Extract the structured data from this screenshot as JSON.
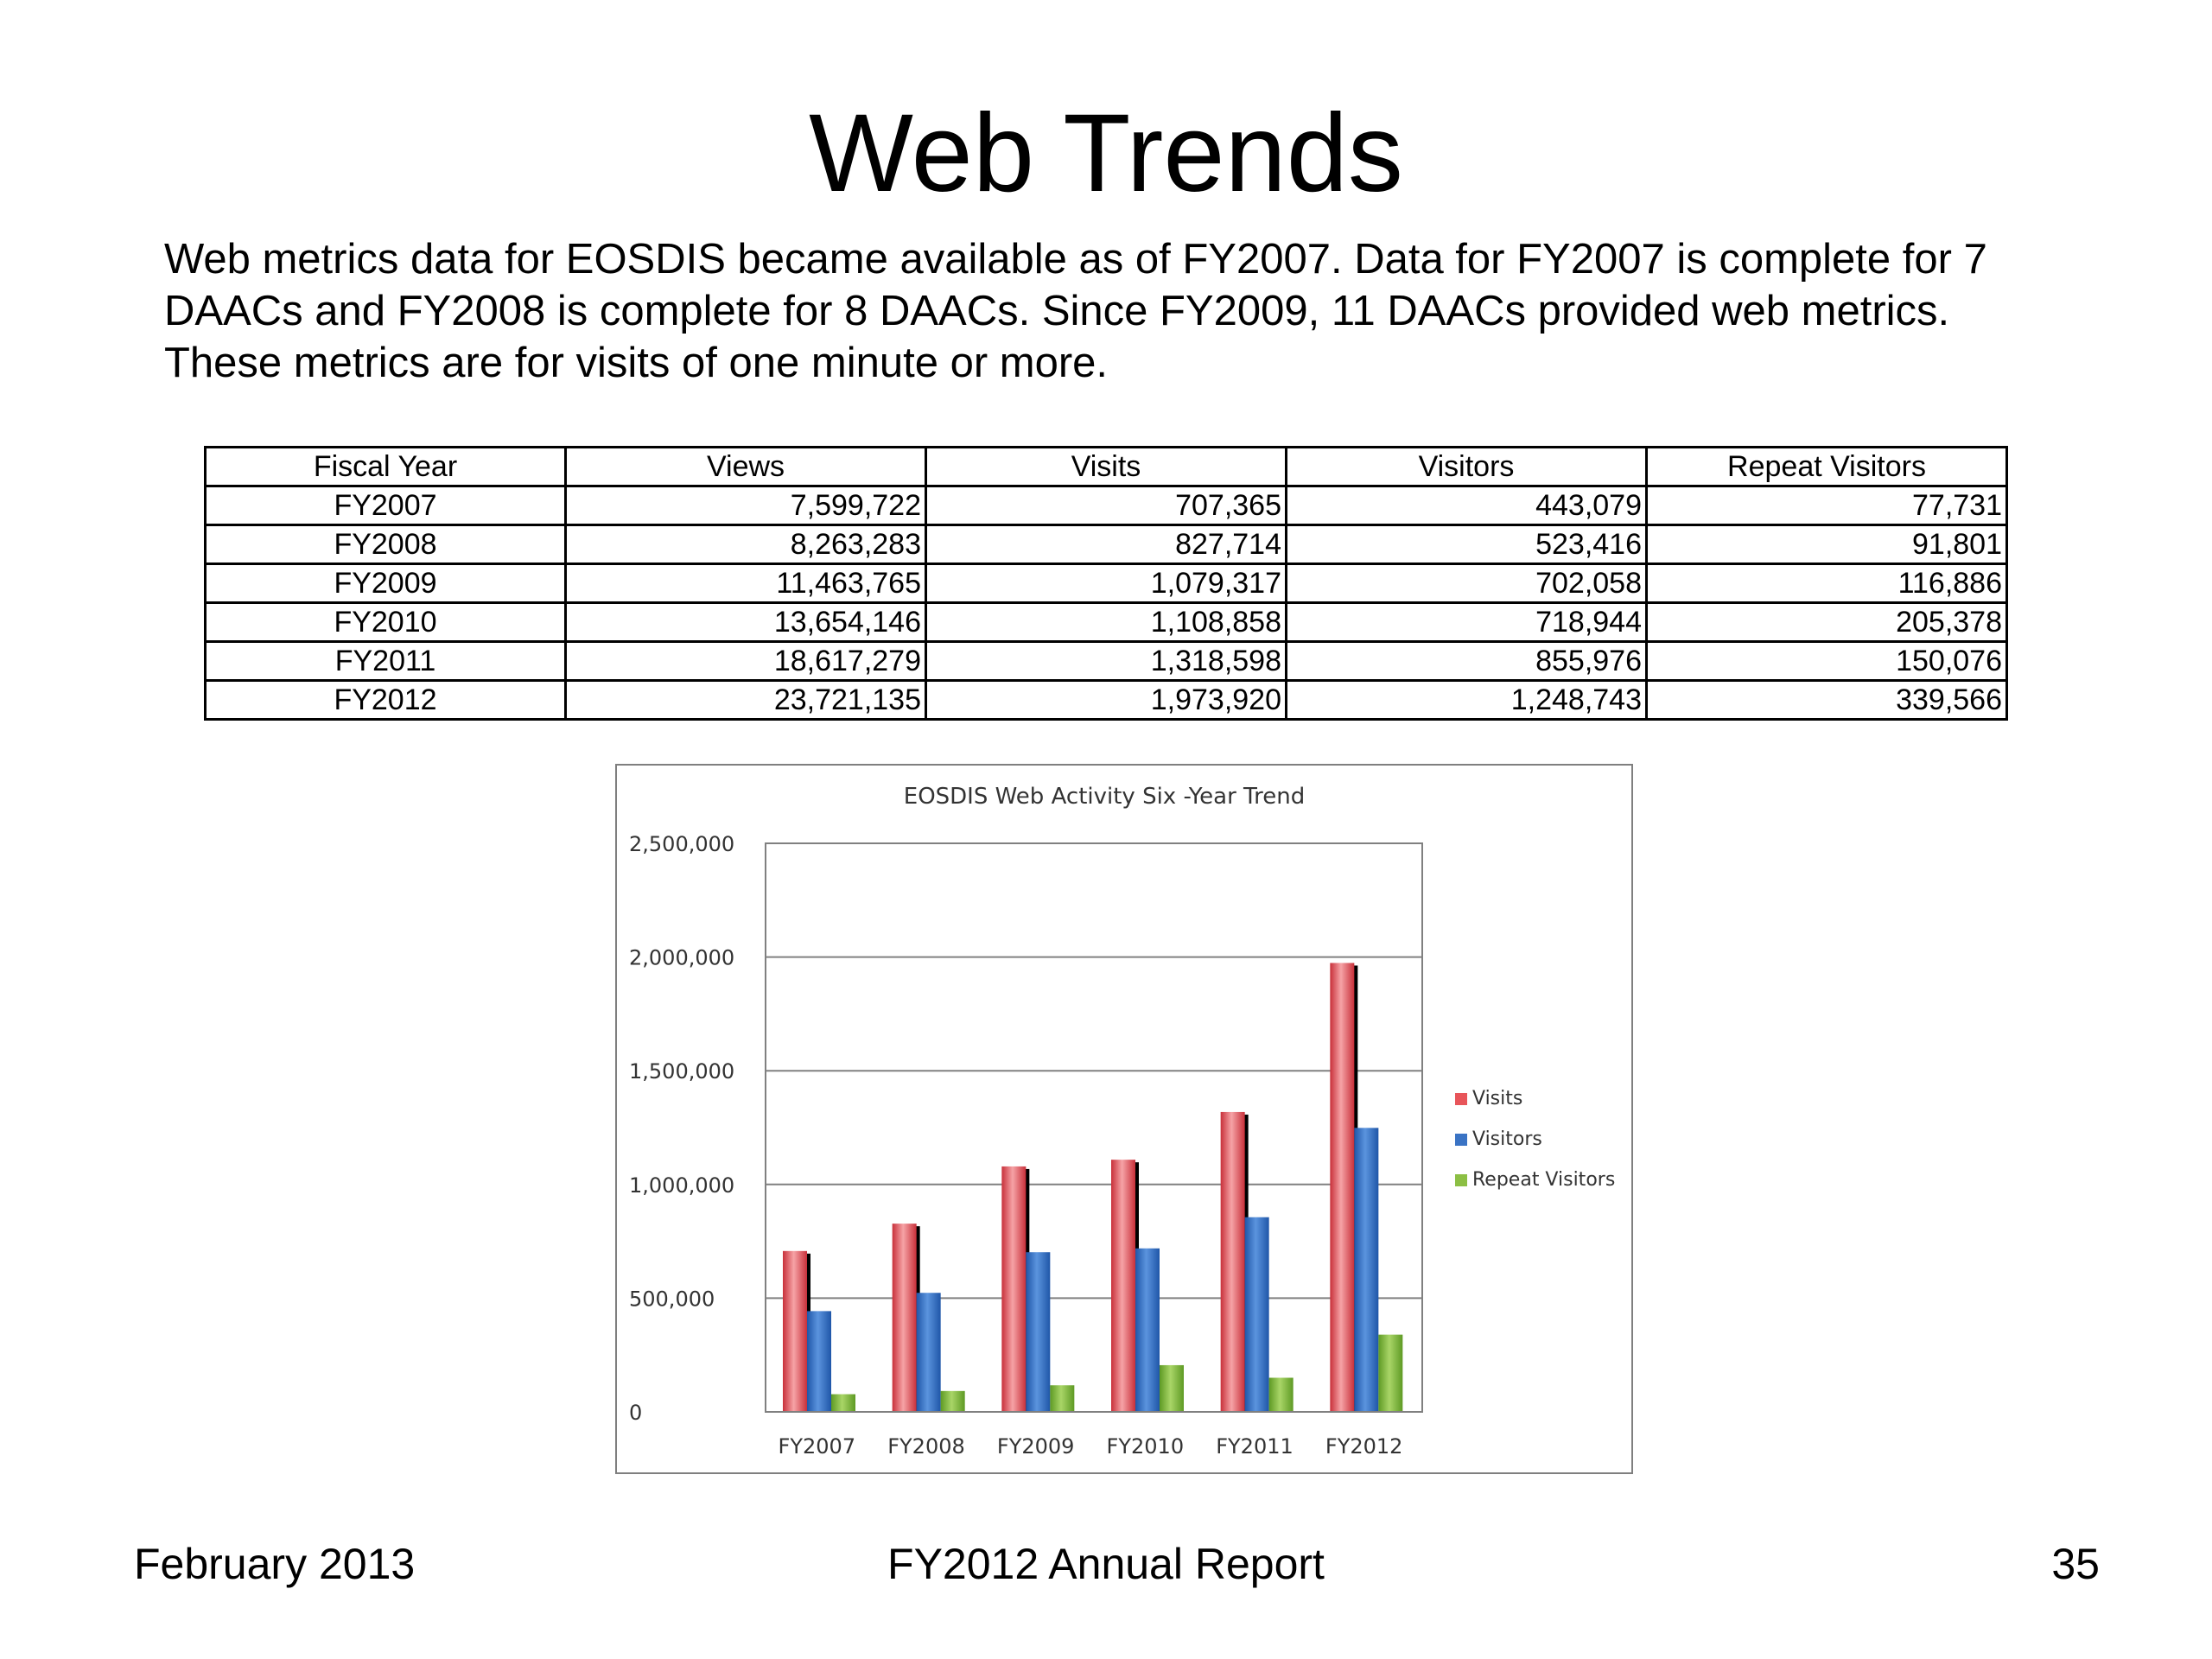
{
  "slide": {
    "title": "Web Trends",
    "intro": [
      "Web metrics data for EOSDIS became available as of FY2007. Data for FY2007 is complete for 7",
      "DAACs and FY2008 is complete for 8 DAACs. Since FY2009, 11 DAACs provided  web metrics.",
      "These metrics are for visits of one minute or more."
    ],
    "footer": {
      "date": "February 2013",
      "report": "FY2012 Annual Report",
      "page": "35"
    }
  },
  "table": {
    "headers": [
      "Fiscal Year",
      "Views",
      "Visits",
      "Visitors",
      "Repeat Visitors"
    ],
    "rows": [
      [
        "FY2007",
        "7,599,722",
        "707,365",
        "443,079",
        "77,731"
      ],
      [
        "FY2008",
        "8,263,283",
        "827,714",
        "523,416",
        "91,801"
      ],
      [
        "FY2009",
        "11,463,765",
        "1,079,317",
        "702,058",
        "116,886"
      ],
      [
        "FY2010",
        "13,654,146",
        "1,108,858",
        "718,944",
        "205,378"
      ],
      [
        "FY2011",
        "18,617,279",
        "1,318,598",
        "855,976",
        "150,076"
      ],
      [
        "FY2012",
        "23,721,135",
        "1,973,920",
        "1,248,743",
        "339,566"
      ]
    ]
  },
  "chart_data": {
    "type": "bar",
    "title": "EOSDIS Web Activity Six -Year Trend",
    "xlabel": "",
    "ylabel": "",
    "categories": [
      "FY2007",
      "FY2008",
      "FY2009",
      "FY2010",
      "FY2011",
      "FY2012"
    ],
    "series": [
      {
        "name": "Visits",
        "color": "#e8555a",
        "values": [
          707365,
          827714,
          1079317,
          1108858,
          1318598,
          1973920
        ]
      },
      {
        "name": "Visitors",
        "color": "#3a73c4",
        "values": [
          443079,
          523416,
          702058,
          718944,
          855976,
          1248743
        ]
      },
      {
        "name": "Repeat Visitors",
        "color": "#8cbf44",
        "values": [
          77731,
          91801,
          116886,
          205378,
          150076,
          339566
        ]
      }
    ],
    "ylim": [
      0,
      2500000
    ],
    "yticks": [
      0,
      500000,
      1000000,
      1500000,
      2000000,
      2500000
    ],
    "ytick_labels": [
      "0",
      "500,000",
      "1,000,000",
      "1,500,000",
      "2,000,000",
      "2,500,000"
    ],
    "grid": true,
    "legend_position": "right"
  }
}
